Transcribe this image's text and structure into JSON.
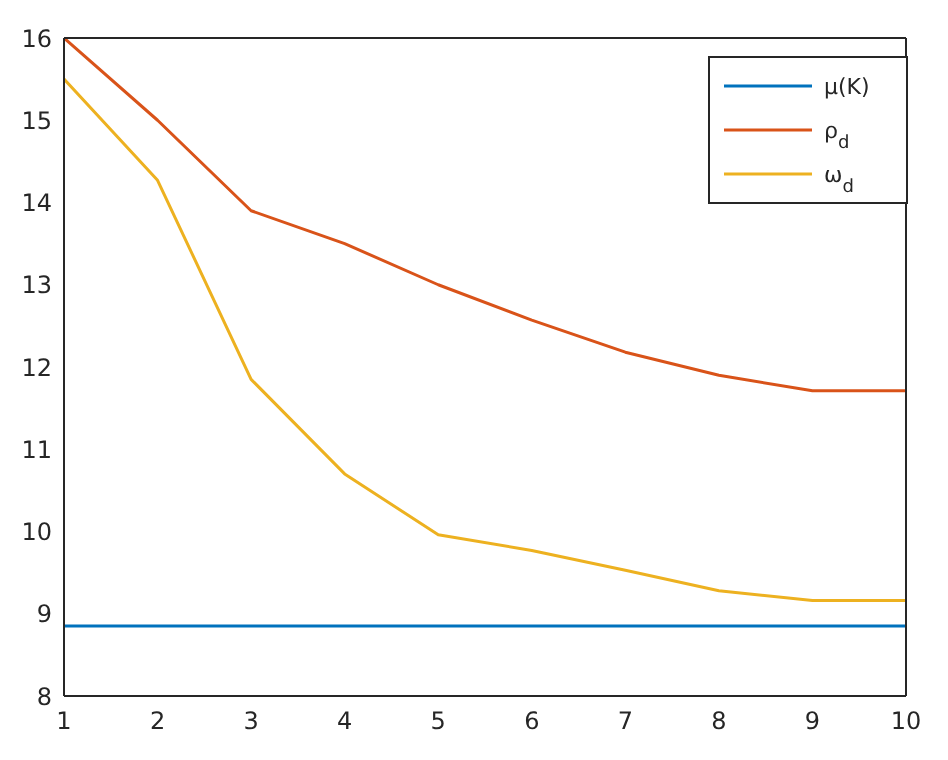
{
  "chart_data": {
    "type": "line",
    "x": [
      1,
      2,
      3,
      4,
      5,
      6,
      7,
      8,
      9,
      10
    ],
    "series": [
      {
        "name": "μ(K)",
        "color": "#0072bd",
        "values": [
          8.85,
          8.85,
          8.85,
          8.85,
          8.85,
          8.85,
          8.85,
          8.85,
          8.85,
          8.85
        ]
      },
      {
        "name": "ρ$_{d}$",
        "color": "#d95319",
        "values": [
          16,
          15,
          13.9,
          13.5,
          13,
          12.57,
          12.18,
          11.9,
          11.71,
          11.71
        ]
      },
      {
        "name": "ω$_{d}$",
        "color": "#edb120",
        "values": [
          15.5,
          14.27,
          11.85,
          10.7,
          9.96,
          9.77,
          9.53,
          9.28,
          9.16,
          9.16
        ]
      }
    ],
    "xlim": [
      1,
      10
    ],
    "xticks": [
      1,
      2,
      3,
      4,
      5,
      6,
      7,
      8,
      9,
      10
    ],
    "ylim": [
      8,
      16
    ],
    "yticks": [
      8,
      9,
      10,
      11,
      12,
      13,
      14,
      15,
      16
    ],
    "grid": false,
    "legend": "top right",
    "marker": "none",
    "line_style": "solid"
  }
}
